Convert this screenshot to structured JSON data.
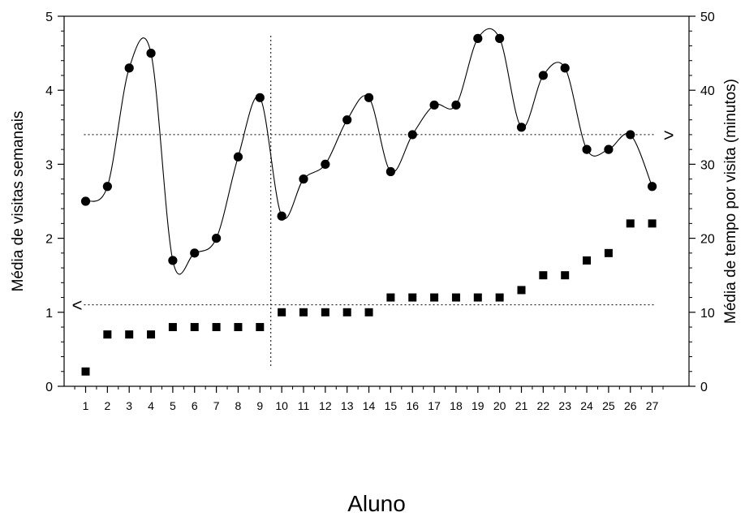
{
  "chart_data": {
    "type": "scatter",
    "xlabel": "Aluno",
    "ylabel_left": "Média de visitas semanais",
    "ylabel_right": "Média de tempo por visita (minutos)",
    "x_categories": [
      "1",
      "2",
      "3",
      "4",
      "5",
      "6",
      "7",
      "8",
      "9",
      "10",
      "11",
      "12",
      "13",
      "14",
      "15",
      "16",
      "17",
      "18",
      "19",
      "20",
      "21",
      "22",
      "23",
      "24",
      "25",
      "26",
      "27"
    ],
    "ylim_left": [
      0,
      5
    ],
    "yticks_left": [
      "0",
      "1",
      "2",
      "3",
      "4",
      "5"
    ],
    "ylim_right": [
      0,
      50
    ],
    "yticks_right": [
      "0",
      "10",
      "20",
      "30",
      "40",
      "50"
    ],
    "grid": false,
    "series": [
      {
        "marker": "circle",
        "axis": "right",
        "values": [
          25,
          27,
          43,
          45,
          17,
          18,
          20,
          31,
          39,
          23,
          28,
          30,
          36,
          39,
          29,
          34,
          38,
          38,
          47,
          47,
          35,
          42,
          43,
          32,
          32,
          34,
          27
        ],
        "smooth_line": true
      },
      {
        "marker": "square",
        "axis": "left",
        "values": [
          0.2,
          0.7,
          0.7,
          0.7,
          0.8,
          0.8,
          0.8,
          0.8,
          0.8,
          1.0,
          1.0,
          1.0,
          1.0,
          1.0,
          1.2,
          1.2,
          1.2,
          1.2,
          1.2,
          1.2,
          1.3,
          1.5,
          1.5,
          1.7,
          1.8,
          2.2,
          2.2
        ]
      }
    ],
    "reference_lines": [
      {
        "orientation": "horizontal",
        "axis": "right",
        "value": 34,
        "from_x": 1,
        "to_x": 27,
        "style": "dotted",
        "label": ">"
      },
      {
        "orientation": "horizontal",
        "axis": "left",
        "value": 1.1,
        "from_x": 1,
        "to_x": 27,
        "style": "dotted",
        "label": "<"
      },
      {
        "orientation": "vertical",
        "value": 9.5,
        "style": "dotted"
      }
    ]
  }
}
